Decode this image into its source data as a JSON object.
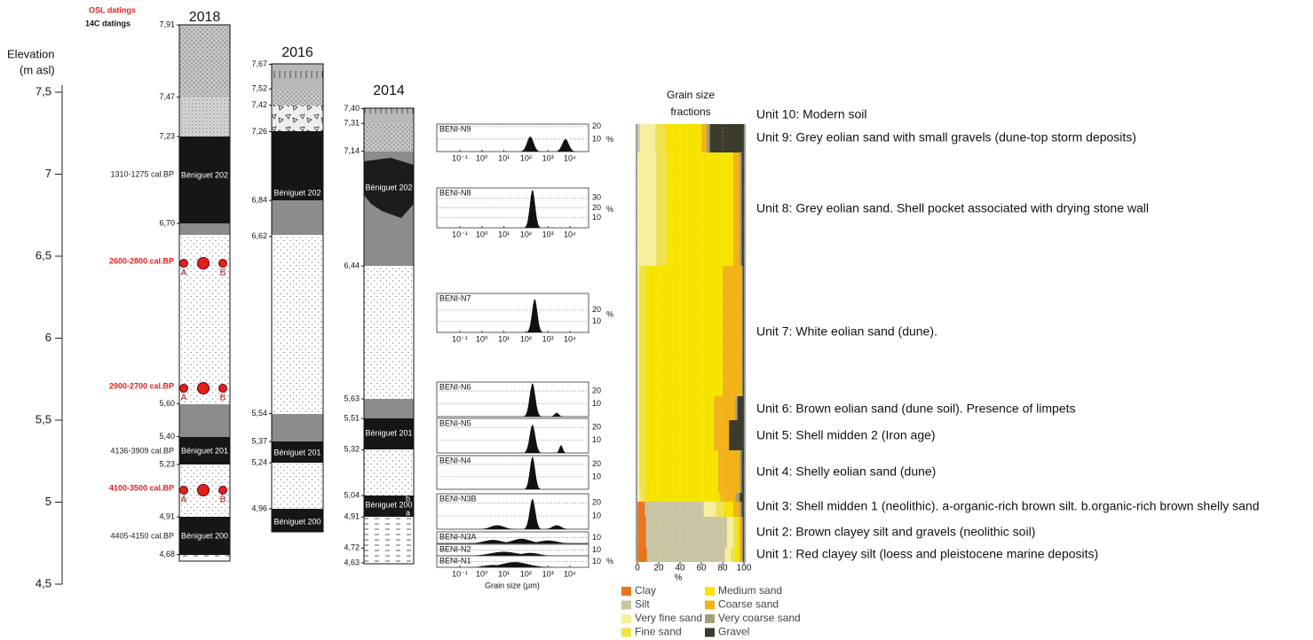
{
  "elevation_axis": {
    "title": "Elevation",
    "unit": "(m asl)",
    "ylim": [
      4.5,
      7.5
    ],
    "yticks": [
      {
        "value": 7.5,
        "label": "7,5"
      },
      7,
      {
        "value": 6.5,
        "label": "6,5"
      },
      6,
      {
        "value": 5.5,
        "label": "5,5"
      },
      5,
      {
        "value": 4.5,
        "label": "4,5"
      }
    ]
  },
  "dating_legend": {
    "osl": "OSL datings",
    "c14": "14C datings"
  },
  "datings": [
    {
      "label": "1310-1275 cal.BP",
      "color": "#222222"
    },
    {
      "label": "2600-2800 cal.BP",
      "color": "#e2211c"
    },
    {
      "label": "2900-2700 cal.BP",
      "color": "#e2211c"
    },
    {
      "label": "4136-3909 cal.BP",
      "color": "#222222"
    },
    {
      "label": "4100-3500 cal.BP",
      "color": "#e2211c"
    },
    {
      "label": "4405-4150 cal.BP",
      "color": "#222222"
    }
  ],
  "samples": [
    "A",
    "B"
  ],
  "sections": [
    {
      "year": "2018",
      "units": [
        "Béniguet 202",
        "Béniguet 201",
        "Béniguet 200"
      ],
      "labels": [
        {
          "value": 7.91,
          "label": "7,91"
        },
        {
          "value": 7.47,
          "label": "7,47"
        },
        {
          "value": 7.23,
          "label": "7,23"
        },
        {
          "value": 6.7,
          "label": "6,70"
        },
        {
          "value": 5.6,
          "label": "5,60"
        },
        {
          "value": 5.4,
          "label": "5,40"
        },
        {
          "value": 5.23,
          "label": "5,23"
        },
        {
          "value": 4.91,
          "label": "4,91"
        },
        {
          "value": 4.68,
          "label": "4,68"
        }
      ]
    },
    {
      "year": "2016",
      "units": [
        "Béniguet 202",
        "Béniguet 201",
        "Béniguet 200"
      ],
      "labels": [
        {
          "value": 7.67,
          "label": "7,67"
        },
        {
          "value": 7.52,
          "label": "7,52"
        },
        {
          "value": 7.42,
          "label": "7,42"
        },
        {
          "value": 7.26,
          "label": "7,26"
        },
        {
          "value": 6.84,
          "label": "6,84"
        },
        {
          "value": 6.62,
          "label": "6,62"
        },
        {
          "value": 5.54,
          "label": "5,54"
        },
        {
          "value": 5.37,
          "label": "5,37"
        },
        {
          "value": 5.24,
          "label": "5,24"
        },
        {
          "value": 4.96,
          "label": "4,96"
        }
      ]
    },
    {
      "year": "2014",
      "units": [
        "Béniguet 202",
        "Béniguet 201",
        "Béniguet 200"
      ],
      "subunits": [
        "b",
        "a"
      ],
      "labels": [
        {
          "value": 7.4,
          "label": "7,40"
        },
        {
          "value": 7.31,
          "label": "7,31"
        },
        {
          "value": 7.14,
          "label": "7,14"
        },
        {
          "value": 6.44,
          "label": "6,44"
        },
        {
          "value": 5.63,
          "label": "5,63"
        },
        {
          "value": 5.51,
          "label": "5,51"
        },
        {
          "value": 5.32,
          "label": "5,32"
        },
        {
          "value": 5.04,
          "label": "5,04"
        },
        {
          "value": 4.91,
          "label": "4,91"
        },
        {
          "value": 4.72,
          "label": "4,72"
        },
        {
          "value": 4.63,
          "label": "4,63"
        }
      ]
    }
  ],
  "grain_histograms": {
    "x_title": "Grain size (µm)",
    "unit": "%",
    "xlim": [
      -2.05,
      4.85
    ],
    "xticks": [
      {
        "value": -1,
        "label": "10⁻¹"
      },
      {
        "value": 0,
        "label": "10⁰"
      },
      {
        "value": 1,
        "label": "10¹"
      },
      {
        "value": 2,
        "label": "10²"
      },
      {
        "value": 3,
        "label": "10³"
      },
      {
        "value": 4,
        "label": "10⁴"
      }
    ],
    "panels": [
      {
        "name": "BENI-N9",
        "ylim": [
          0,
          22
        ],
        "yticks": [
          20,
          10
        ],
        "peaks": [
          [
            2.2,
            12,
            0.15
          ],
          [
            3.8,
            10,
            0.15
          ]
        ]
      },
      {
        "name": "BENI-N8",
        "ylim": [
          0,
          40
        ],
        "yticks": [
          30,
          20,
          10
        ],
        "peaks": [
          [
            2.3,
            38,
            0.12
          ]
        ]
      },
      {
        "name": "BENI-N7",
        "ylim": [
          0,
          35
        ],
        "yticks": [
          20,
          10
        ],
        "peaks": [
          [
            2.4,
            30,
            0.12
          ]
        ]
      },
      {
        "name": "BENI-N6",
        "ylim": [
          0,
          27
        ],
        "yticks": [
          20,
          10
        ],
        "peaks": [
          [
            2.3,
            26,
            0.13
          ],
          [
            3.4,
            3,
            0.1
          ]
        ]
      },
      {
        "name": "BENI-N5",
        "ylim": [
          0,
          27
        ],
        "yticks": [
          20,
          10
        ],
        "peaks": [
          [
            2.3,
            22,
            0.13
          ],
          [
            3.6,
            6,
            0.08
          ]
        ]
      },
      {
        "name": "BENI-N4",
        "ylim": [
          0,
          27
        ],
        "yticks": [
          20,
          10
        ],
        "peaks": [
          [
            2.3,
            26,
            0.12
          ]
        ]
      },
      {
        "name": "BENI-N3B",
        "ylim": [
          0,
          27
        ],
        "yticks": [
          20,
          10
        ],
        "peaks": [
          [
            2.3,
            23,
            0.13
          ],
          [
            0.7,
            3,
            0.3
          ],
          [
            3.4,
            3,
            0.2
          ]
        ]
      },
      {
        "name": "BENI-N3A",
        "ylim": [
          0,
          20
        ],
        "yticks": [
          10
        ],
        "peaks": [
          [
            0.5,
            6,
            0.4
          ],
          [
            1.8,
            8,
            0.4
          ],
          [
            3,
            5,
            0.4
          ]
        ]
      },
      {
        "name": "BENI-N2",
        "ylim": [
          0,
          20
        ],
        "yticks": [
          10
        ],
        "peaks": [
          [
            1,
            7,
            0.6
          ],
          [
            2.2,
            5,
            0.4
          ]
        ]
      },
      {
        "name": "BENI-N1",
        "ylim": [
          0,
          20
        ],
        "yticks": [
          10
        ],
        "peaks": [
          [
            1.5,
            9,
            0.6
          ],
          [
            0.5,
            4,
            0.4
          ]
        ]
      }
    ]
  },
  "grain_fractions": {
    "title_lines": [
      "Grain size",
      "fractions"
    ],
    "unit": "%",
    "xlim": [
      0,
      100
    ],
    "xticks": [
      0,
      20,
      40,
      60,
      80,
      100
    ],
    "classes": [
      {
        "name": "Clay",
        "color": "#e8751f"
      },
      {
        "name": "Silt",
        "color": "#c9c4a2"
      },
      {
        "name": "Very fine sand",
        "color": "#f6ef9e"
      },
      {
        "name": "Fine sand",
        "color": "#efe24a"
      },
      {
        "name": "Medium sand",
        "color": "#f6e400"
      },
      {
        "name": "Coarse sand",
        "color": "#f2b21a"
      },
      {
        "name": "Very coarse sand",
        "color": "#a29e7b"
      },
      {
        "name": "Gravel",
        "color": "#3d3b2c"
      }
    ],
    "rows": [
      [
        0,
        2,
        15,
        10,
        33,
        5,
        3,
        32
      ],
      [
        0,
        0,
        18,
        10,
        62,
        6,
        2,
        2
      ],
      [
        0,
        0,
        2,
        6,
        72,
        18,
        1,
        1
      ],
      [
        0,
        0,
        2,
        6,
        64,
        20,
        2,
        6
      ],
      [
        0,
        0,
        2,
        6,
        64,
        14,
        0,
        14
      ],
      [
        0,
        0,
        2,
        6,
        68,
        20,
        2,
        2
      ],
      [
        0,
        0,
        3,
        5,
        70,
        14,
        4,
        4
      ],
      [
        7,
        55,
        12,
        8,
        8,
        6,
        2,
        2
      ],
      [
        8,
        76,
        6,
        4,
        2,
        2,
        1,
        1
      ],
      [
        9,
        73,
        6,
        4,
        4,
        2,
        1,
        1
      ]
    ]
  },
  "units": [
    "Unit 10: Modern soil",
    "Unit 9: Grey eolian sand with small gravels (dune-top storm deposits)",
    "Unit 8: Grey eolian sand. Shell pocket associated with drying stone wall",
    "Unit 7: White eolian sand (dune).",
    "Unit 6: Brown eolian sand (dune soil). Presence of limpets",
    "Unit 5: Shell midden 2 (Iron age)",
    "Unit 4: Shelly eolian sand (dune)",
    "Unit 3: Shell midden 1 (neolithic). a-organic-rich brown silt. b.organic-rich brown shelly sand",
    "Unit 2: Brown clayey silt and gravels (neolithic soil)",
    "Unit 1: Red clayey silt (loess and pleistocene marine deposits)"
  ]
}
